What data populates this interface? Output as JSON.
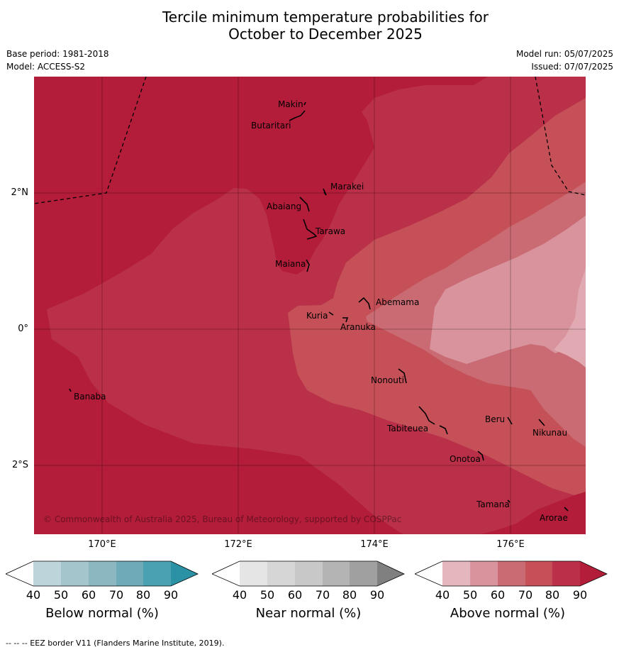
{
  "title_line1": "Tercile minimum temperature probabilities for",
  "title_line2": "October to December 2025",
  "meta": {
    "base_period": "Base period: 1981-2018",
    "model": "Model: ACCESS-S2",
    "model_run": "Model run: 05/07/2025",
    "issued": "Issued: 07/07/2025"
  },
  "map": {
    "longitude_labels": [
      "170°E",
      "172°E",
      "174°E",
      "176°E"
    ],
    "latitude_labels": [
      "2°N",
      "0°",
      "2°S"
    ],
    "islands": [
      "Makin",
      "Butaritari",
      "Marakei",
      "Abaiang",
      "Tarawa",
      "Maiana",
      "Abemama",
      "Kuria",
      "Aranuka",
      "Banaba",
      "Nonouti",
      "Tabiteuea",
      "Beru",
      "Nikunau",
      "Onotoa",
      "Tamana",
      "Arorae"
    ],
    "copyright": "© Commonwealth of Australia 2025, Bureau of Meteorology, supported by COSPPac",
    "fill_colors": {
      "above_90": "#b31d3a",
      "above_80": "#ba3049",
      "above_70": "#c55057",
      "above_60": "#ca6b73",
      "above_50": "#d8939d"
    }
  },
  "colorbars": [
    {
      "label": "Below normal (%)",
      "ticks": [
        "40",
        "50",
        "60",
        "70",
        "80",
        "90"
      ],
      "colors": [
        "#ffffff",
        "#bdd4da",
        "#a5c5cc",
        "#8bb7c1",
        "#6dabb8",
        "#49a1b1",
        "#2b92a5"
      ]
    },
    {
      "label": "Near normal (%)",
      "ticks": [
        "40",
        "50",
        "60",
        "70",
        "80",
        "90"
      ],
      "colors": [
        "#ffffff",
        "#e5e5e5",
        "#d6d6d6",
        "#c8c8c8",
        "#b4b4b4",
        "#a0a0a0",
        "#808080"
      ]
    },
    {
      "label": "Above normal (%)",
      "ticks": [
        "40",
        "50",
        "60",
        "70",
        "80",
        "90"
      ],
      "colors": [
        "#ffffff",
        "#e3b7bd",
        "#d8939d",
        "#ca6b73",
        "#c55057",
        "#ba3049",
        "#b31d3a"
      ]
    }
  ],
  "eez_note": "--  --  -- EEZ border V11 (Flanders Marine Institute, 2019)."
}
